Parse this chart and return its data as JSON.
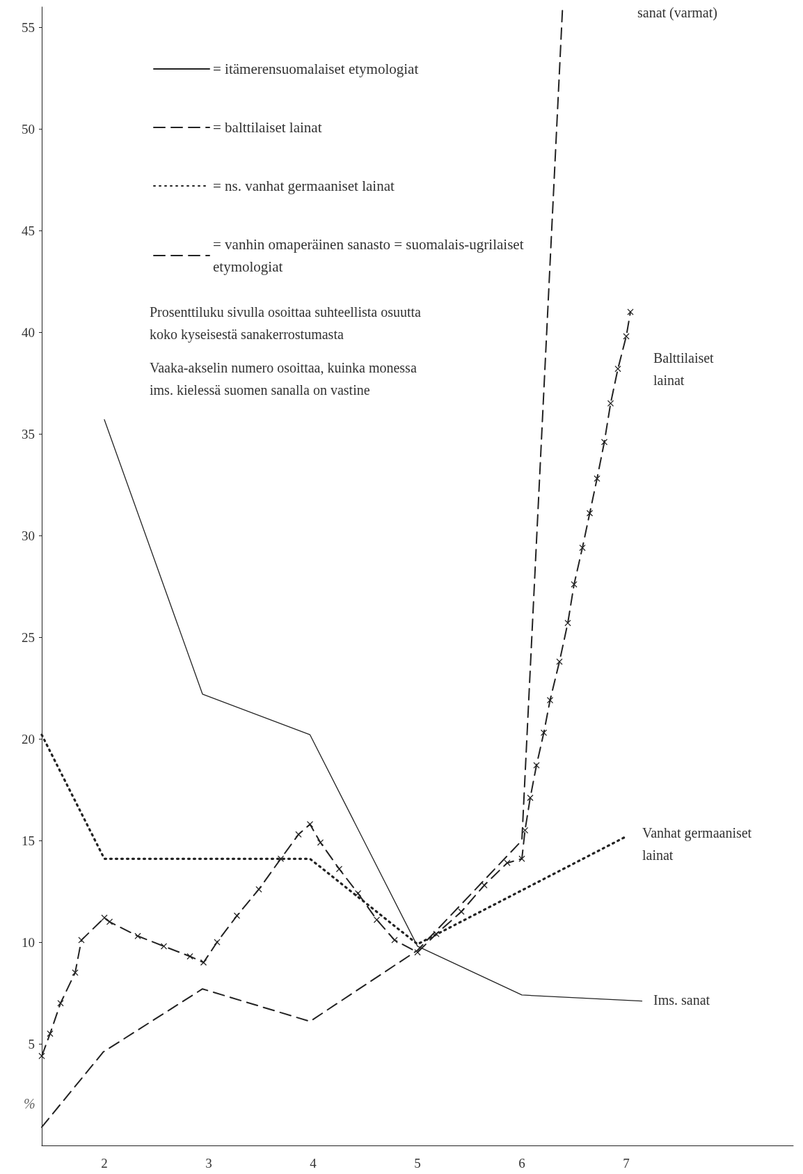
{
  "chart_data": {
    "type": "line",
    "ylabel": "%",
    "xlim": [
      1.4,
      8.6
    ],
    "xticks": [
      2,
      3,
      4,
      5,
      6,
      7
    ],
    "ylim": [
      0,
      56
    ],
    "yticks": [
      5,
      10,
      15,
      20,
      25,
      30,
      35,
      40,
      45,
      50,
      55
    ],
    "legend": "top left",
    "series": [
      {
        "name": "= itämerensuomalaiset etymologiat",
        "line_style": "solid",
        "color": "#222222",
        "x": [
          2,
          2.94,
          3.97,
          5,
          6,
          7.15
        ],
        "values": [
          35.7,
          22.2,
          20.2,
          9.8,
          7.4,
          7.1
        ]
      },
      {
        "name": "= balttilaiset lainat",
        "line_style": "dashed",
        "marker": "cross",
        "color": "#222222",
        "x": [
          1.4,
          1.48,
          1.58,
          1.72,
          1.78,
          2.0,
          2.05,
          2.32,
          2.57,
          2.82,
          2.95,
          3.08,
          3.27,
          3.48,
          3.69,
          3.86,
          3.97,
          4.07,
          4.25,
          4.43,
          4.61,
          4.78,
          5.0,
          5.18,
          5.42,
          5.64,
          5.86,
          6.0,
          6.03,
          6.08,
          6.14,
          6.21,
          6.27,
          6.36,
          6.44,
          6.5,
          6.58,
          6.65,
          6.72,
          6.79,
          6.85,
          6.92,
          7.0,
          7.04
        ],
        "values": [
          4.4,
          5.5,
          7.0,
          8.5,
          10.1,
          11.2,
          11.0,
          10.3,
          9.8,
          9.3,
          9.0,
          10.0,
          11.3,
          12.6,
          14.1,
          15.3,
          15.8,
          14.9,
          13.6,
          12.4,
          11.1,
          10.1,
          9.5,
          10.4,
          11.5,
          12.8,
          13.9,
          14.1,
          15.5,
          17.1,
          18.7,
          20.3,
          21.9,
          23.8,
          25.7,
          27.6,
          29.4,
          31.1,
          32.8,
          34.6,
          36.5,
          38.2,
          39.8,
          41.0
        ]
      },
      {
        "name": "= ns. vanhat germaaniset lainat",
        "line_style": "dotted",
        "color": "#222222",
        "x": [
          1.4,
          2,
          3.97,
          5,
          7
        ],
        "values": [
          20.2,
          14.1,
          14.1,
          9.9,
          15.2
        ]
      },
      {
        "name": "= vanhin omaperäinen sanasto = suomalais-ugrilaiset etymologiat",
        "line_style": "dashed",
        "color": "#222222",
        "x": [
          1.4,
          1.99,
          2.94,
          3.97,
          5,
          6,
          6.39
        ],
        "values": [
          0.9,
          4.6,
          7.7,
          6.1,
          9.6,
          15.0,
          56
        ]
      }
    ],
    "annotations": [
      "Prosenttiluku sivulla osoittaa suhteellista osuutta\nkoko kyseisestä sanakerrostumasta",
      "Vaaka-akselin numero osoittaa, kuinka monessa\nims. kielessä suomen sanalla on vastine",
      "sanat (varmat)",
      "Balttilaiset\nlainat",
      "Vanhat germaaniset\nlainat",
      "Ims. sanat"
    ]
  }
}
